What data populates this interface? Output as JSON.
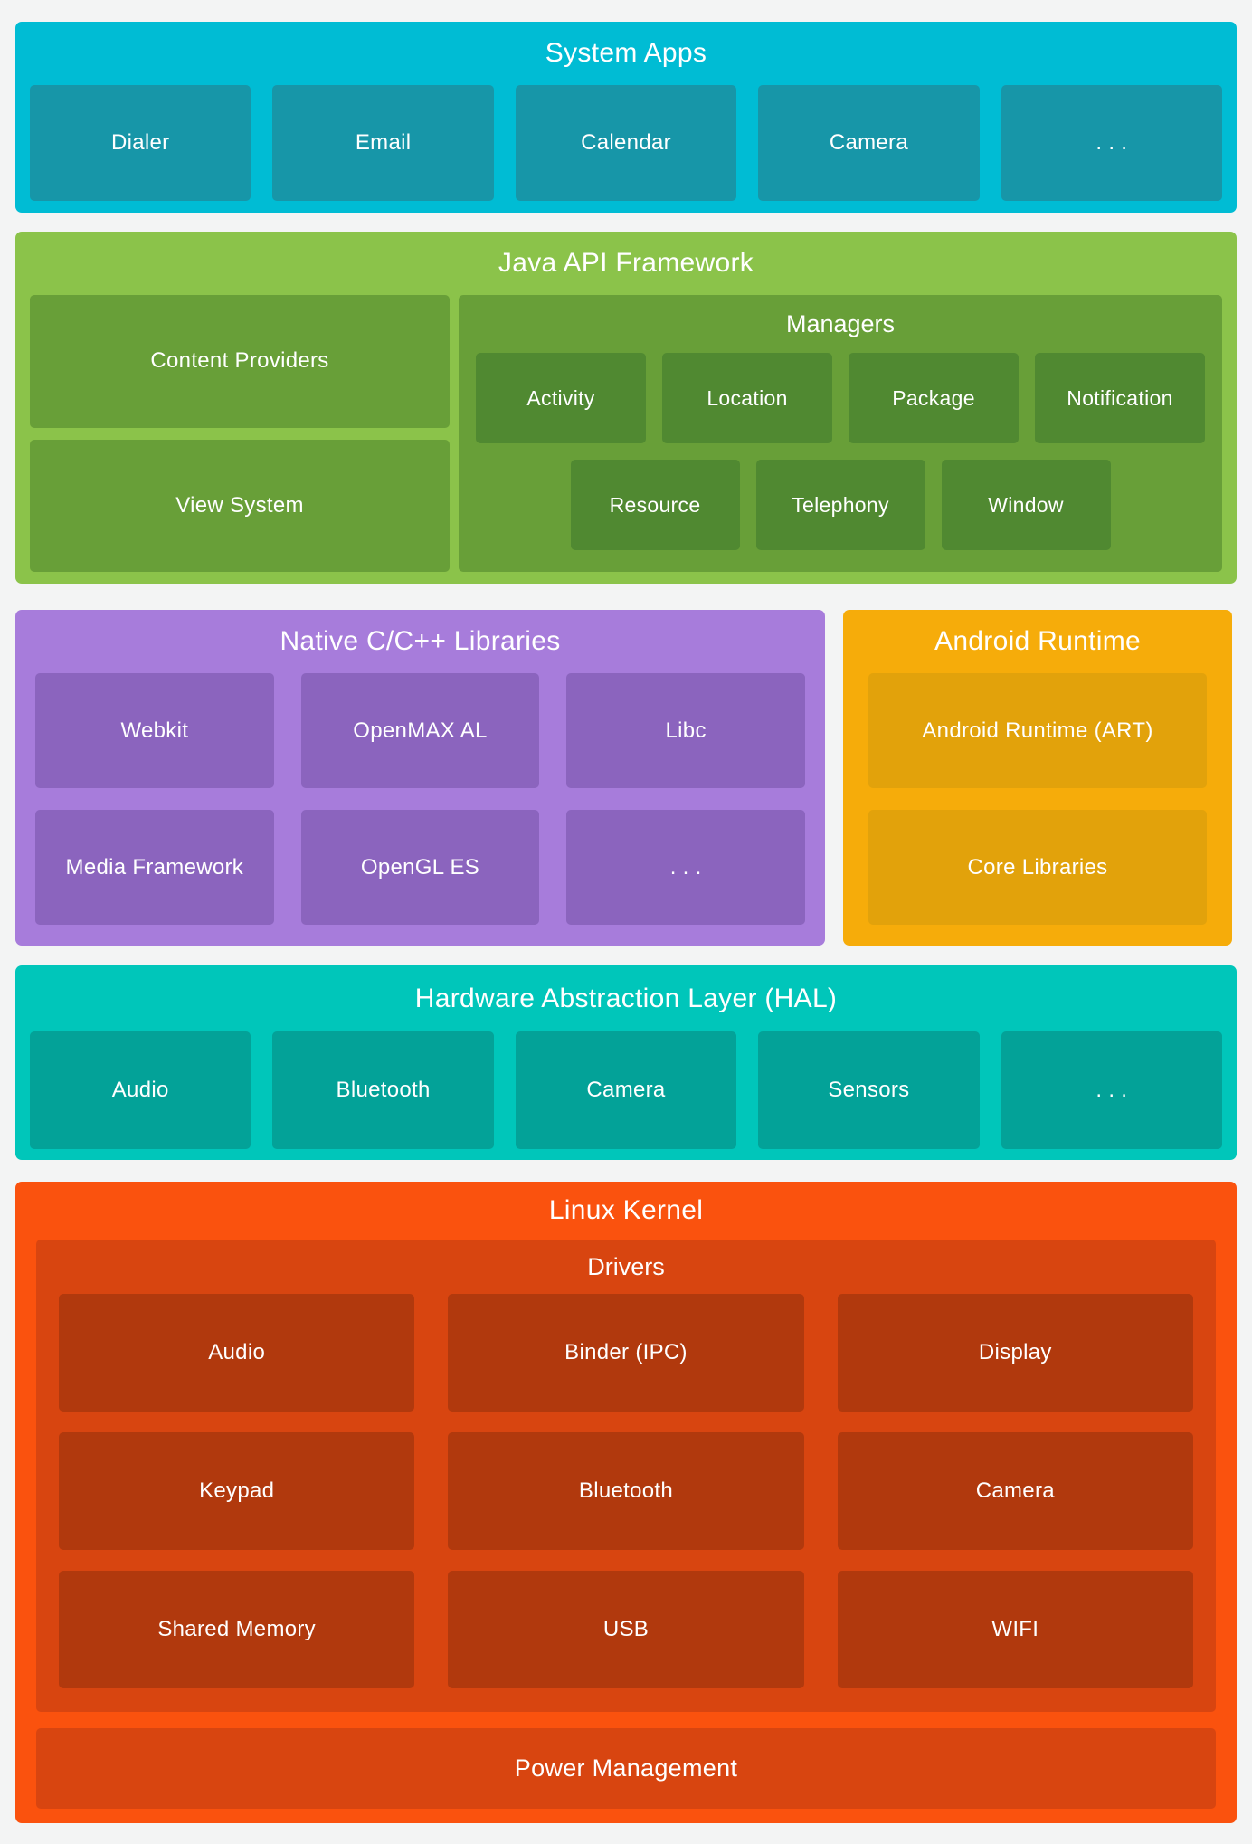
{
  "colors": {
    "page_bg": "#F3F4F4",
    "system_apps": {
      "bg": "#00BCD4",
      "box": "#1796A8"
    },
    "java_api": {
      "bg": "#8BC34A",
      "panel": "#689F38",
      "box": "#508931"
    },
    "native_libs": {
      "bg": "#A77CDB",
      "box": "#8B64BE"
    },
    "android_runtime": {
      "bg": "#F6AC0A",
      "box": "#E2A20B"
    },
    "hal": {
      "bg": "#00C6BA",
      "box": "#03A298"
    },
    "linux_kernel": {
      "bg": "#FA520E",
      "panel": "#D84510",
      "box": "#B1390D"
    }
  },
  "sections": {
    "system_apps": {
      "title": "System Apps",
      "boxes": [
        "Dialer",
        "Email",
        "Calendar",
        "Camera",
        ". . ."
      ]
    },
    "java_api": {
      "title": "Java API Framework",
      "left_boxes": [
        "Content Providers",
        "View System"
      ],
      "managers": {
        "title": "Managers",
        "row1": [
          "Activity",
          "Location",
          "Package",
          "Notification"
        ],
        "row2": [
          "Resource",
          "Telephony",
          "Window"
        ]
      }
    },
    "native_libs": {
      "title": "Native C/C++ Libraries",
      "boxes": [
        "Webkit",
        "OpenMAX AL",
        "Libc",
        "Media Framework",
        "OpenGL ES",
        ". . ."
      ]
    },
    "android_runtime": {
      "title": "Android Runtime",
      "boxes": [
        "Android Runtime (ART)",
        "Core Libraries"
      ]
    },
    "hal": {
      "title": "Hardware Abstraction Layer (HAL)",
      "boxes": [
        "Audio",
        "Bluetooth",
        "Camera",
        "Sensors",
        ". . ."
      ]
    },
    "linux_kernel": {
      "title": "Linux Kernel",
      "drivers": {
        "title": "Drivers",
        "boxes": [
          "Audio",
          "Binder (IPC)",
          "Display",
          "Keypad",
          "Bluetooth",
          "Camera",
          "Shared Memory",
          "USB",
          "WIFI"
        ]
      },
      "power": "Power Management"
    }
  }
}
